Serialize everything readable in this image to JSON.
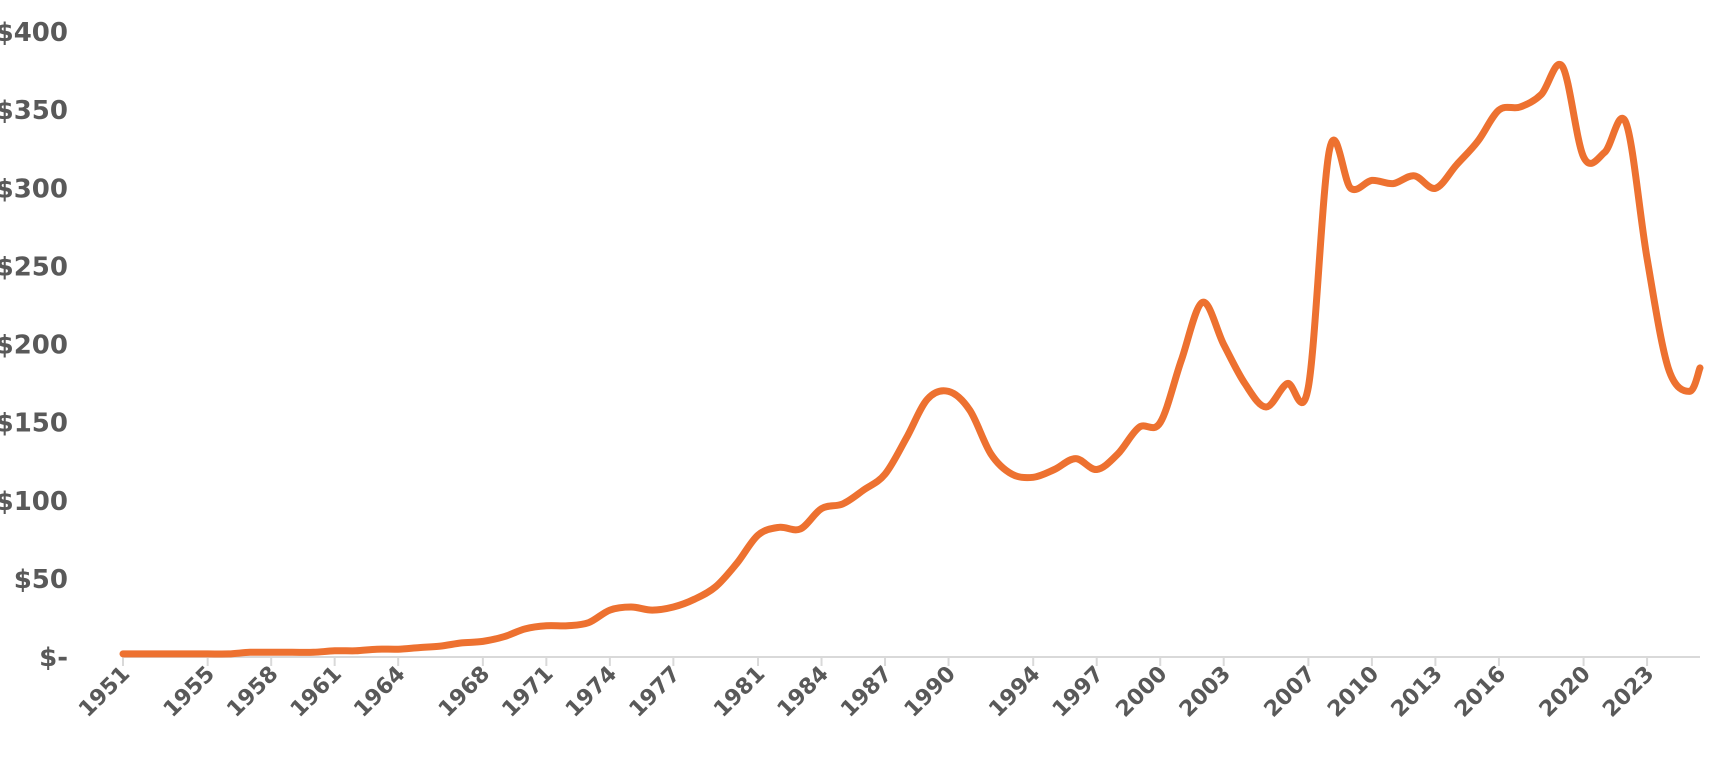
{
  "chart_data": {
    "type": "line",
    "title": "",
    "xlabel": "",
    "ylabel": "",
    "ylim": [
      0,
      400
    ],
    "xlim": [
      1951,
      2025.5
    ],
    "grid": false,
    "legend": "none",
    "line_color": "#ED7130",
    "y_ticks": [
      {
        "value": 0,
        "label": "$-"
      },
      {
        "value": 50,
        "label": "$50"
      },
      {
        "value": 100,
        "label": "$100"
      },
      {
        "value": 150,
        "label": "$150"
      },
      {
        "value": 200,
        "label": "$200"
      },
      {
        "value": 250,
        "label": "$250"
      },
      {
        "value": 300,
        "label": "$300"
      },
      {
        "value": 350,
        "label": "$350"
      },
      {
        "value": 400,
        "label": "$400"
      }
    ],
    "x_ticks": [
      "1951",
      "1955",
      "1958",
      "1961",
      "1964",
      "1968",
      "1971",
      "1974",
      "1977",
      "1981",
      "1984",
      "1987",
      "1990",
      "1994",
      "1997",
      "2000",
      "2003",
      "2007",
      "2010",
      "2013",
      "2016",
      "2020",
      "2023"
    ],
    "series": [
      {
        "x": [
          1951,
          1952,
          1953,
          1954,
          1955,
          1956,
          1957,
          1958,
          1959,
          1960,
          1961,
          1962,
          1963,
          1964,
          1965,
          1966,
          1967,
          1968,
          1969,
          1970,
          1971,
          1972,
          1973,
          1974,
          1975,
          1976,
          1977,
          1978,
          1979,
          1980,
          1981,
          1982,
          1983,
          1984,
          1985,
          1986,
          1987,
          1988,
          1989,
          1990,
          1991,
          1992,
          1993,
          1994,
          1995,
          1996,
          1997,
          1998,
          1999,
          2000,
          2001,
          2002,
          2003,
          2004,
          2005,
          2006,
          2007,
          2008,
          2009,
          2010,
          2011,
          2012,
          2013,
          2014,
          2015,
          2016,
          2017,
          2018,
          2019,
          2020,
          2021,
          2022,
          2023,
          2024,
          2025,
          2025.5
        ],
        "y": [
          2,
          2,
          2,
          2,
          2,
          2,
          3,
          3,
          3,
          3,
          4,
          4,
          5,
          5,
          6,
          7,
          9,
          10,
          13,
          18,
          20,
          20,
          22,
          30,
          32,
          30,
          32,
          37,
          45,
          60,
          78,
          83,
          82,
          95,
          98,
          107,
          117,
          140,
          165,
          170,
          158,
          130,
          117,
          115,
          120,
          127,
          120,
          130,
          147,
          150,
          190,
          227,
          200,
          175,
          160,
          175,
          173,
          325,
          300,
          305,
          303,
          308,
          300,
          315,
          330,
          350,
          352,
          360,
          378,
          320,
          323,
          342,
          255,
          185,
          170,
          185
        ]
      }
    ]
  }
}
